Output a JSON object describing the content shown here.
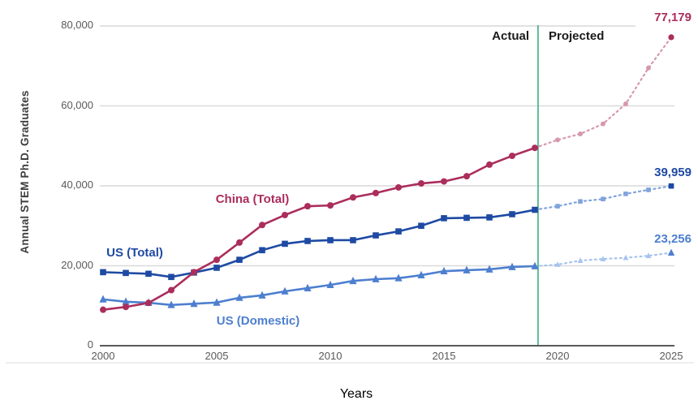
{
  "chart_data": {
    "type": "line",
    "title": "",
    "xlabel": "Years",
    "ylabel": "Annual STEM Ph.D. Graduates",
    "x_tick_years": [
      2000,
      2005,
      2010,
      2015,
      2020,
      2025
    ],
    "x_tick_labels": [
      "2000",
      "2005",
      "2010",
      "2015",
      "2020",
      "2025"
    ],
    "y_ticks": [
      0,
      20000,
      40000,
      60000,
      80000
    ],
    "y_tick_labels": [
      "0",
      "20,000",
      "40,000",
      "60,000",
      "80,000"
    ],
    "xlim": [
      2000,
      2025
    ],
    "ylim": [
      0,
      80000
    ],
    "grid": "horizontal-only",
    "divider": {
      "year_position": 2019.14,
      "left_label": "Actual",
      "right_label": "Projected",
      "color": "#3cae80"
    },
    "series": [
      {
        "name": "China (Total)",
        "label": "China (Total)",
        "marker": "circle",
        "color": "#ab2d5c",
        "projected_color": "#d698ae",
        "end_label": "77,179",
        "end_value": 77179,
        "actual_years": [
          2000,
          2001,
          2002,
          2003,
          2004,
          2005,
          2006,
          2007,
          2008,
          2009,
          2010,
          2011,
          2012,
          2013,
          2014,
          2015,
          2016,
          2017,
          2018,
          2019
        ],
        "actual_values": [
          9000,
          9700,
          10700,
          13900,
          18400,
          21500,
          25800,
          30200,
          32700,
          34900,
          35100,
          37100,
          38200,
          39600,
          40600,
          41100,
          42400,
          45300,
          47500,
          49500
        ],
        "projected_years": [
          2019,
          2020,
          2021,
          2022,
          2023,
          2024,
          2025
        ],
        "projected_values": [
          49500,
          51500,
          53000,
          55500,
          60500,
          69500,
          77179
        ]
      },
      {
        "name": "US (Total)",
        "label": "US (Total)",
        "marker": "square",
        "color": "#1e4aa3",
        "projected_color": "#7fa3dc",
        "end_label": "39,959",
        "end_value": 39959,
        "actual_years": [
          2000,
          2001,
          2002,
          2003,
          2004,
          2005,
          2006,
          2007,
          2008,
          2009,
          2010,
          2011,
          2012,
          2013,
          2014,
          2015,
          2016,
          2017,
          2018,
          2019
        ],
        "actual_values": [
          18400,
          18200,
          18000,
          17200,
          18300,
          19500,
          21500,
          23900,
          25500,
          26200,
          26400,
          26400,
          27600,
          28600,
          30000,
          31900,
          32000,
          32100,
          32900,
          34000
        ],
        "projected_years": [
          2019,
          2020,
          2021,
          2022,
          2023,
          2024,
          2025
        ],
        "projected_values": [
          34000,
          34900,
          36100,
          36700,
          38000,
          39000,
          39959
        ]
      },
      {
        "name": "US (Domestic)",
        "label": "US (Domestic)",
        "marker": "triangle",
        "color": "#4d7fd0",
        "projected_color": "#a8c4ee",
        "end_label": "23,256",
        "end_value": 23256,
        "actual_years": [
          2000,
          2001,
          2002,
          2003,
          2004,
          2005,
          2006,
          2007,
          2008,
          2009,
          2010,
          2011,
          2012,
          2013,
          2014,
          2015,
          2016,
          2017,
          2018,
          2019
        ],
        "actual_values": [
          11600,
          11000,
          10750,
          10200,
          10500,
          10800,
          12000,
          12600,
          13600,
          14400,
          15200,
          16200,
          16650,
          16900,
          17650,
          18650,
          18900,
          19100,
          19700,
          19900
        ],
        "projected_years": [
          2019,
          2020,
          2021,
          2022,
          2023,
          2024,
          2025
        ],
        "projected_values": [
          19900,
          20300,
          21300,
          21700,
          22000,
          22500,
          23256
        ]
      }
    ]
  }
}
